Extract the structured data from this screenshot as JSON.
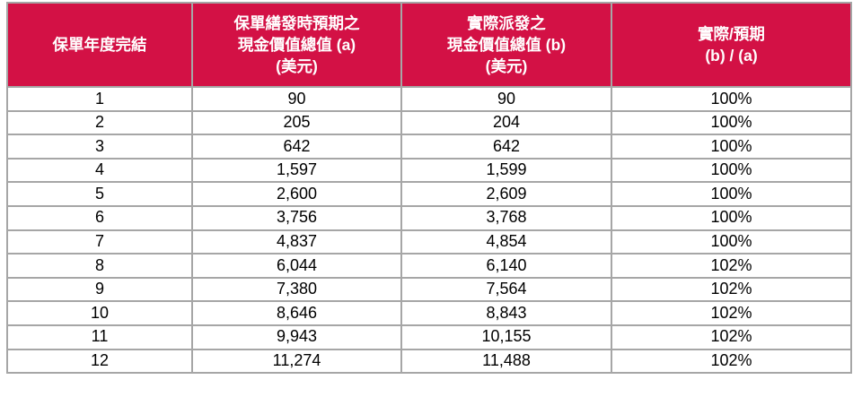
{
  "table": {
    "accent_color": "#d31145",
    "header_text_color": "#ffffff",
    "grid_color": "#a6a6a6",
    "headers": [
      {
        "label": "保單年度完結"
      },
      {
        "label": "保單繕發時預期之\n現金價值總值 (a)\n(美元)"
      },
      {
        "label": "實際派發之\n現金價值總值 (b)\n(美元)"
      },
      {
        "label": "實際/預期\n(b) / (a)"
      }
    ],
    "rows": [
      {
        "year": "1",
        "expected": "90",
        "actual": "90",
        "ratio": "100%"
      },
      {
        "year": "2",
        "expected": "205",
        "actual": "204",
        "ratio": "100%"
      },
      {
        "year": "3",
        "expected": "642",
        "actual": "642",
        "ratio": "100%"
      },
      {
        "year": "4",
        "expected": "1,597",
        "actual": "1,599",
        "ratio": "100%"
      },
      {
        "year": "5",
        "expected": "2,600",
        "actual": "2,609",
        "ratio": "100%"
      },
      {
        "year": "6",
        "expected": "3,756",
        "actual": "3,768",
        "ratio": "100%"
      },
      {
        "year": "7",
        "expected": "4,837",
        "actual": "4,854",
        "ratio": "100%"
      },
      {
        "year": "8",
        "expected": "6,044",
        "actual": "6,140",
        "ratio": "102%"
      },
      {
        "year": "9",
        "expected": "7,380",
        "actual": "7,564",
        "ratio": "102%"
      },
      {
        "year": "10",
        "expected": "8,646",
        "actual": "8,843",
        "ratio": "102%"
      },
      {
        "year": "11",
        "expected": "9,943",
        "actual": "10,155",
        "ratio": "102%"
      },
      {
        "year": "12",
        "expected": "11,274",
        "actual": "11,488",
        "ratio": "102%"
      }
    ]
  }
}
